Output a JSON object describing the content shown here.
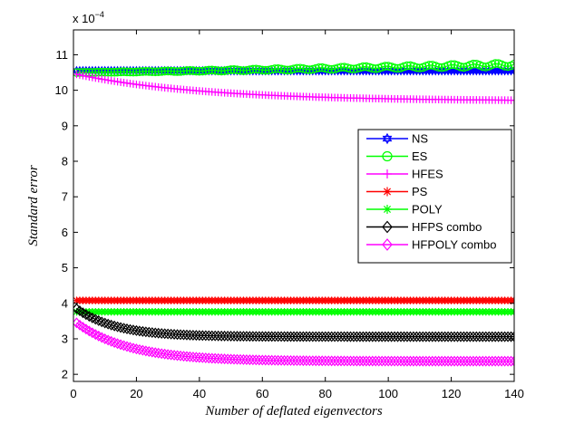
{
  "chart_data": {
    "type": "line",
    "title": "",
    "xlabel": "Number of deflated eigenvectors",
    "ylabel": "Standard error",
    "y_exponent_label": "x 10",
    "y_exponent_power": "−4",
    "xlim": [
      0,
      140
    ],
    "ylim": [
      1.8,
      11.7
    ],
    "x_ticks": [
      0,
      20,
      40,
      60,
      80,
      100,
      120,
      140
    ],
    "y_ticks": [
      2,
      3,
      4,
      5,
      6,
      7,
      8,
      9,
      10,
      11
    ],
    "x_tick_labels": [
      "0",
      "20",
      "40",
      "60",
      "80",
      "100",
      "120",
      "140"
    ],
    "y_tick_labels": [
      "2",
      "3",
      "4",
      "5",
      "6",
      "7",
      "8",
      "9",
      "10",
      "11"
    ],
    "legend_position": "right-middle",
    "series": [
      {
        "name": "NS",
        "color": "#0000ff",
        "marker": "hexagram",
        "start": 10.55,
        "end": 10.55,
        "shape": "flat"
      },
      {
        "name": "ES",
        "color": "#00ff00",
        "marker": "circle",
        "start": 10.5,
        "end": 10.72,
        "shape": "rise",
        "noise": 0.05
      },
      {
        "name": "HFES",
        "color": "#ff00ff",
        "marker": "plus",
        "start": 10.45,
        "end": 9.72,
        "shape": "decay",
        "rate": 0.025
      },
      {
        "name": "PS",
        "color": "#ff0000",
        "marker": "asterisk",
        "start": 4.08,
        "end": 4.08,
        "shape": "flat"
      },
      {
        "name": "POLY",
        "color": "#00ff00",
        "marker": "asterisk",
        "start": 3.76,
        "end": 3.76,
        "shape": "flat"
      },
      {
        "name": "HFPS combo",
        "color": "#000000",
        "marker": "diamond",
        "start": 3.85,
        "end": 3.06,
        "shape": "decay",
        "rate": 0.08
      },
      {
        "name": "HFPOLY combo",
        "color": "#ff00ff",
        "marker": "diamond",
        "start": 3.45,
        "end": 2.37,
        "shape": "decay",
        "rate": 0.06
      }
    ]
  }
}
